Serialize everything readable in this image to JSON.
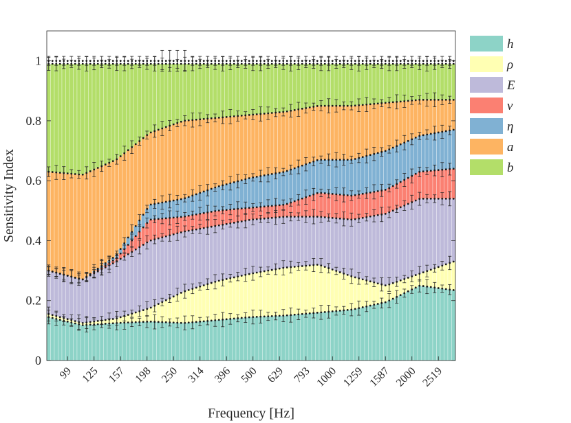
{
  "chart_data": {
    "type": "stacked-bar",
    "title": "",
    "xlabel": "Frequency [Hz]",
    "ylabel": "Sensitivity Index",
    "ylim": [
      0,
      1.1
    ],
    "yticks": [
      {
        "value": 0,
        "label": "0"
      },
      {
        "value": 0.2,
        "label": "0.2"
      },
      {
        "value": 0.4,
        "label": "0.4"
      },
      {
        "value": 0.6,
        "label": "0.6"
      },
      {
        "value": 0.8,
        "label": "0.8"
      },
      {
        "value": 1,
        "label": "1"
      }
    ],
    "xticks": [
      {
        "index": 5,
        "label": "99"
      },
      {
        "index": 12,
        "label": "125"
      },
      {
        "index": 19,
        "label": "157"
      },
      {
        "index": 26,
        "label": "198"
      },
      {
        "index": 33,
        "label": "250"
      },
      {
        "index": 40,
        "label": "314"
      },
      {
        "index": 47,
        "label": "396"
      },
      {
        "index": 54,
        "label": "500"
      },
      {
        "index": 61,
        "label": "629"
      },
      {
        "index": 68,
        "label": "793"
      },
      {
        "index": 75,
        "label": "1000"
      },
      {
        "index": 82,
        "label": "1259"
      },
      {
        "index": 89,
        "label": "1587"
      },
      {
        "index": 96,
        "label": "2000"
      },
      {
        "index": 103,
        "label": "2519"
      }
    ],
    "n_frequencies": 108,
    "cumulative_control_points": [
      [
        0.155,
        0.3,
        0.3,
        0.3,
        0.63,
        0.99
      ],
      [
        0.125,
        0.27,
        0.27,
        0.27,
        0.62,
        0.99
      ],
      [
        0.14,
        0.33,
        0.34,
        0.35,
        0.67,
        0.99
      ],
      [
        0.175,
        0.4,
        0.47,
        0.52,
        0.76,
        0.99
      ],
      [
        0.23,
        0.43,
        0.48,
        0.54,
        0.8,
        0.99
      ],
      [
        0.265,
        0.45,
        0.5,
        0.58,
        0.81,
        0.99
      ],
      [
        0.29,
        0.47,
        0.51,
        0.61,
        0.82,
        0.99
      ],
      [
        0.31,
        0.48,
        0.52,
        0.63,
        0.83,
        0.99
      ],
      [
        0.32,
        0.48,
        0.56,
        0.67,
        0.85,
        0.99
      ],
      [
        0.28,
        0.47,
        0.55,
        0.67,
        0.85,
        0.99
      ],
      [
        0.25,
        0.49,
        0.57,
        0.7,
        0.86,
        0.99
      ],
      [
        0.29,
        0.54,
        0.63,
        0.75,
        0.87,
        0.99
      ],
      [
        0.33,
        0.54,
        0.64,
        0.77,
        0.87,
        0.99
      ]
    ],
    "h_control_points": [
      0.145,
      0.118,
      0.125,
      0.13,
      0.125,
      0.135,
      0.145,
      0.15,
      0.16,
      0.17,
      0.195,
      0.25,
      0.235
    ],
    "series": [
      {
        "name": "h",
        "color": "#8dd3c7"
      },
      {
        "name": "ρ",
        "color": "#ffffb3"
      },
      {
        "name": "E",
        "color": "#bebada"
      },
      {
        "name": "ν",
        "color": "#fb8072"
      },
      {
        "name": "η",
        "color": "#80b1d3"
      },
      {
        "name": "a",
        "color": "#fdb462"
      },
      {
        "name": "b",
        "color": "#b3de69"
      }
    ],
    "legend_position": "outside-top-right"
  }
}
